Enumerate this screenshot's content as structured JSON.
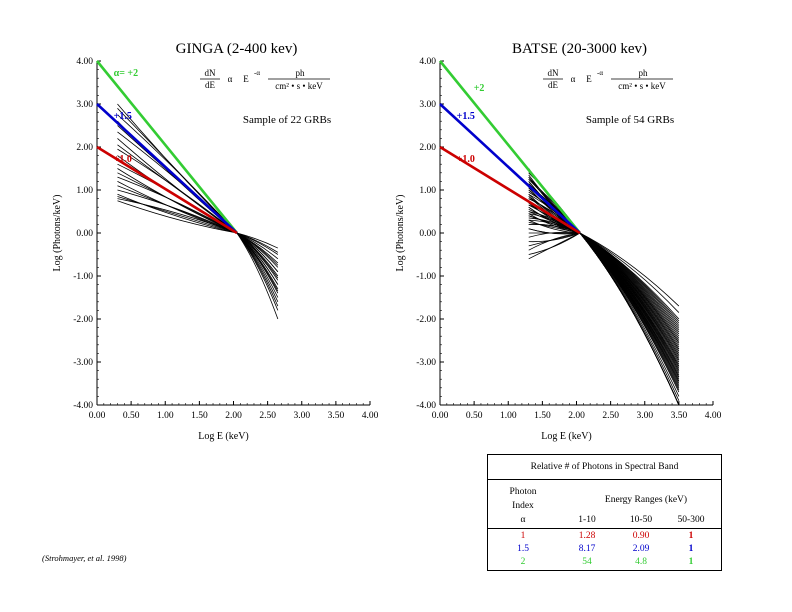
{
  "colors": {
    "green": "#33cc33",
    "blue": "#0000cc",
    "red": "#cc0000",
    "curves": "#000000"
  },
  "chart_data": [
    {
      "type": "line",
      "title": "GINGA (2-400 kev)",
      "xlabel": "Log E (keV)",
      "ylabel": "Log (Photons/keV)",
      "xlim": [
        0,
        4
      ],
      "ylim": [
        -4,
        4
      ],
      "xticks": [
        "0.00",
        "0.50",
        "1.00",
        "1.50",
        "2.00",
        "2.50",
        "3.00",
        "3.50",
        "4.00"
      ],
      "yticks": [
        "4.00",
        "3.00",
        "2.00",
        "1.00",
        "0.00",
        "-1.00",
        "-2.00",
        "-3.00",
        "-4.00"
      ],
      "formula": {
        "lhs_num": "dN",
        "lhs_den": "dE",
        "alpha": "α",
        "power": "E",
        "exp": "-α",
        "rhs_num": "ph",
        "rhs_den": "cm² • s • keV"
      },
      "annotation": "Sample of 22 GRBs",
      "reference_lines": [
        {
          "label": "α= +2",
          "color": "green",
          "x": [
            0,
            2.05
          ],
          "y": [
            4.0,
            0.0
          ]
        },
        {
          "label": "+1.5",
          "color": "blue",
          "x": [
            0,
            2.05
          ],
          "y": [
            3.0,
            0.0
          ]
        },
        {
          "label": "+1.0",
          "color": "red",
          "x": [
            0,
            2.05
          ],
          "y": [
            2.0,
            0.0
          ]
        }
      ],
      "curve_x_range": [
        0.3,
        2.65
      ],
      "curves_left_y": [
        3.0,
        2.9,
        2.75,
        2.6,
        2.5,
        2.35,
        2.2,
        2.05,
        1.95,
        1.8,
        1.7,
        1.6,
        1.5,
        1.4,
        1.3,
        1.2,
        1.1,
        1.0,
        0.9,
        0.85,
        0.8,
        0.75
      ],
      "curves_right_y": [
        -0.35,
        -0.5,
        -0.6,
        -0.7,
        -0.8,
        -0.9,
        -1.0,
        -1.1,
        -1.2,
        -1.3,
        -1.4,
        -1.5,
        -1.6,
        -1.7,
        -1.8,
        -2.0,
        -0.45,
        -0.75,
        -1.05,
        -1.35,
        -0.9,
        -1.2
      ]
    },
    {
      "type": "line",
      "title": "BATSE (20-3000 kev)",
      "xlabel": "Log E (keV)",
      "ylabel": "Log (Photons/keV)",
      "xlim": [
        0,
        4
      ],
      "ylim": [
        -4,
        4
      ],
      "xticks": [
        "0.00",
        "0.50",
        "1.00",
        "1.50",
        "2.00",
        "2.50",
        "3.00",
        "3.50",
        "4.00"
      ],
      "yticks": [
        "4.00",
        "3.00",
        "2.00",
        "1.00",
        "0.00",
        "-1.00",
        "-2.00",
        "-3.00",
        "-4.00"
      ],
      "formula": {
        "lhs_num": "dN",
        "lhs_den": "dE",
        "alpha": "α",
        "power": "E",
        "exp": "-α",
        "rhs_num": "ph",
        "rhs_den": "cm² • s • keV"
      },
      "annotation": "Sample of 54 GRBs",
      "reference_lines": [
        {
          "label": "+2",
          "color": "green",
          "x": [
            0,
            2.05
          ],
          "y": [
            4.0,
            0.0
          ]
        },
        {
          "label": "+1.5",
          "color": "blue",
          "x": [
            0,
            2.05
          ],
          "y": [
            3.0,
            0.0
          ]
        },
        {
          "label": "+1.0",
          "color": "red",
          "x": [
            0,
            2.05
          ],
          "y": [
            2.0,
            0.0
          ]
        }
      ],
      "curve_x_range": [
        1.3,
        3.5
      ],
      "curves_left_y": [
        1.5,
        1.45,
        1.4,
        1.35,
        1.3,
        1.25,
        1.2,
        1.15,
        1.1,
        1.05,
        1.0,
        0.95,
        0.9,
        0.85,
        0.8,
        0.75,
        0.7,
        0.65,
        0.6,
        0.55,
        0.5,
        0.45,
        0.4,
        0.35,
        0.3,
        0.25,
        0.2,
        0.1,
        0.0,
        -0.1,
        -0.2,
        -0.3,
        -0.4,
        -0.5,
        -0.6,
        1.4,
        1.2,
        1.0,
        0.8,
        0.6,
        0.4,
        0.2,
        1.3,
        1.1,
        0.9,
        0.7,
        0.5,
        0.3,
        0.1,
        1.25,
        1.05,
        0.85,
        0.65,
        0.45
      ],
      "curves_right_y": [
        -1.7,
        -1.85,
        -2.0,
        -2.1,
        -2.2,
        -2.3,
        -2.4,
        -2.5,
        -2.55,
        -2.6,
        -2.7,
        -2.75,
        -2.8,
        -2.9,
        -2.95,
        -3.0,
        -3.1,
        -3.15,
        -3.2,
        -3.3,
        -3.35,
        -3.4,
        -3.5,
        -3.55,
        -3.6,
        -3.7,
        -3.8,
        -3.9,
        -4.0,
        -4.0,
        -4.0,
        -4.0,
        -4.0,
        -4.0,
        -4.0,
        -2.05,
        -2.35,
        -2.65,
        -2.85,
        -3.05,
        -3.25,
        -3.45,
        -2.15,
        -2.45,
        -2.7,
        -2.95,
        -3.2,
        -3.45,
        -3.65,
        -2.25,
        -2.55,
        -2.85,
        -3.1,
        -3.35
      ]
    }
  ],
  "table": {
    "caption": "Relative # of Photons in Spectral Band",
    "photon_header": [
      "Photon",
      "Index",
      "α"
    ],
    "energy_header": "Energy Ranges (keV)",
    "columns": [
      "1-10",
      "10-50",
      "50-300"
    ],
    "rows": [
      {
        "index": "1",
        "values": [
          "1.28",
          "0.90",
          "1"
        ],
        "color": "red"
      },
      {
        "index": "1.5",
        "values": [
          "8.17",
          "2.09",
          "1"
        ],
        "color": "blue"
      },
      {
        "index": "2",
        "values": [
          "54",
          "4.8",
          "1"
        ],
        "color": "green"
      }
    ]
  },
  "citation": "(Strohmayer, et al. 1998)"
}
